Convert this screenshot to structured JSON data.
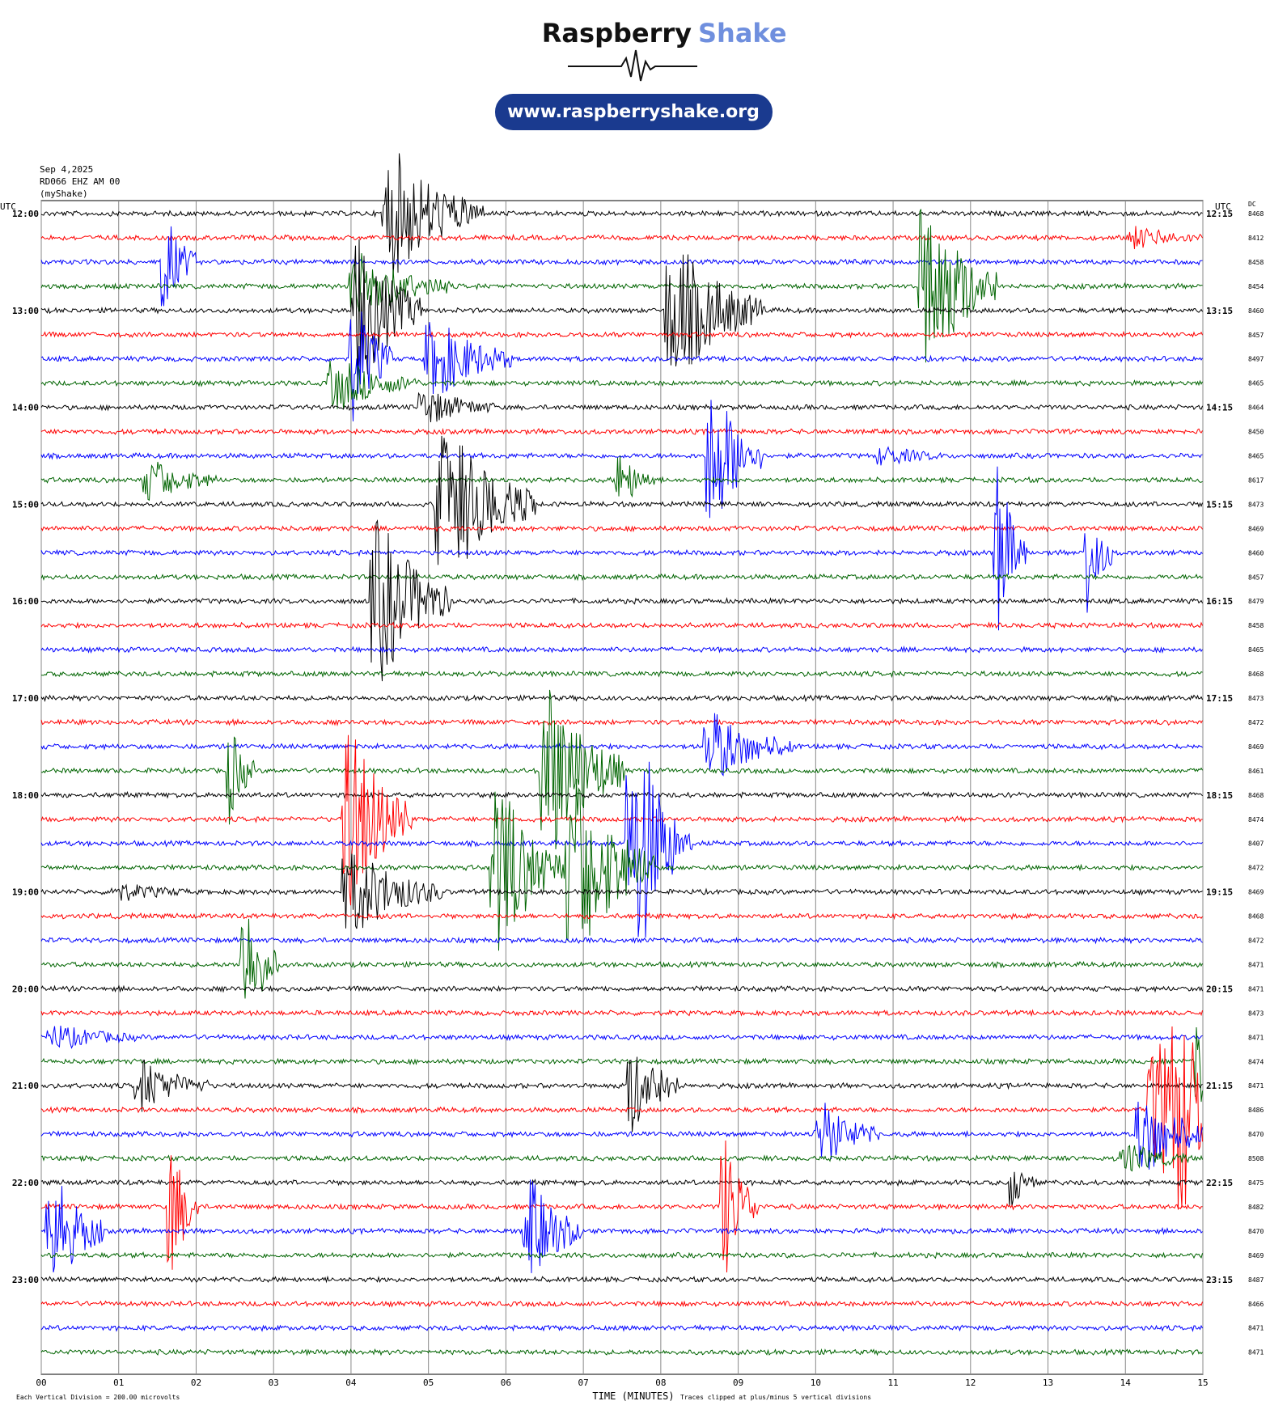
{
  "header": {
    "brand_first": "Raspberry",
    "brand_second": "Shake",
    "url": "www.raspberryshake.org"
  },
  "info": {
    "date": "Sep 4,2025",
    "station": "RD066 EHZ AM 00",
    "network": "(myShake)"
  },
  "left_axis": {
    "title": "UTC",
    "labels": [
      "12:00",
      "13:00",
      "14:00",
      "15:00",
      "16:00",
      "17:00",
      "18:00",
      "19:00",
      "20:00",
      "21:00",
      "22:00",
      "23:00"
    ]
  },
  "right_axis": {
    "title": "UTC",
    "labels": [
      "12:15",
      "13:15",
      "14:15",
      "15:15",
      "16:15",
      "17:15",
      "18:15",
      "19:15",
      "20:15",
      "21:15",
      "22:15",
      "23:15"
    ],
    "dc_title": "DC",
    "dc_values": [
      8468,
      8412,
      8458,
      8454,
      8460,
      8457,
      8497,
      8465,
      8464,
      8450,
      8465,
      8617,
      8473,
      8469,
      8460,
      8457,
      8479,
      8458,
      8465,
      8468,
      8473,
      8472,
      8469,
      8461,
      8468,
      8474,
      8407,
      8472,
      8469,
      8468,
      8472,
      8471,
      8471,
      8473,
      8471,
      8474,
      8471,
      8486,
      8470,
      8508,
      8475,
      8482,
      8470,
      8469,
      8487,
      8466,
      8471,
      8471
    ]
  },
  "x_axis": {
    "ticks": [
      "00",
      "01",
      "02",
      "03",
      "04",
      "05",
      "06",
      "07",
      "08",
      "09",
      "10",
      "11",
      "12",
      "13",
      "14",
      "15"
    ],
    "title": "TIME (MINUTES)"
  },
  "footer": {
    "scale": "Each Vertical Division =  200.00 microvolts",
    "clip": "Traces clipped at plus/minus 5 vertical divisions"
  },
  "trace_colors": [
    "#000000",
    "#ff0000",
    "#0000ff",
    "#006400"
  ]
}
